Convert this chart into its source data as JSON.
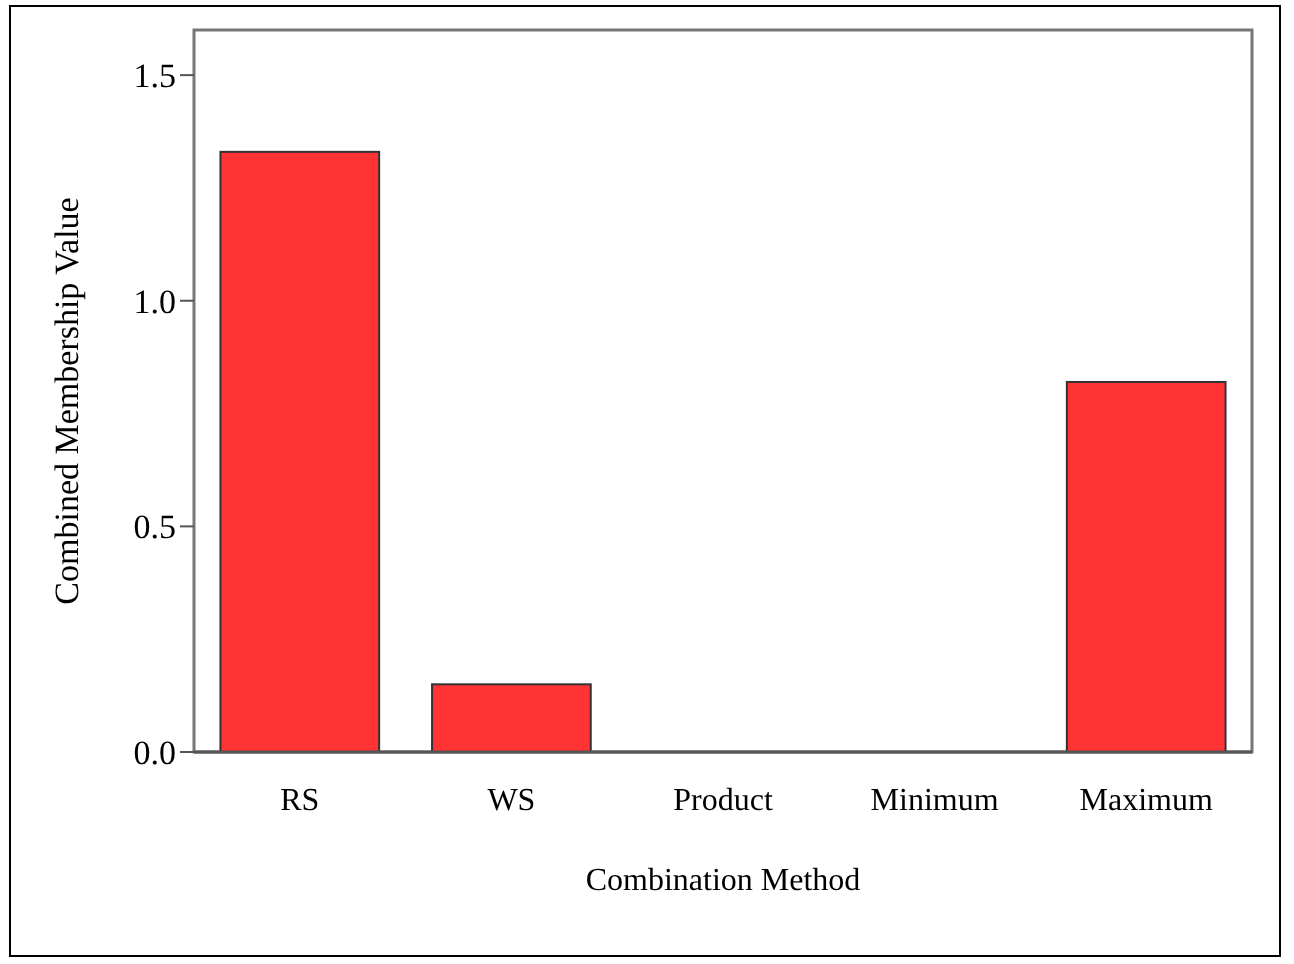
{
  "chart_data": {
    "type": "bar",
    "xlabel": "Combination Method",
    "ylabel": "Combined Membership Value",
    "categories": [
      "RS",
      "WS",
      "Product",
      "Minimum",
      "Maximum"
    ],
    "values": [
      1.33,
      0.15,
      0,
      0,
      0.82
    ],
    "color": "#ff3333",
    "ylim": [
      0,
      1.6
    ],
    "yticks": [
      {
        "value": 0,
        "label": "0.0"
      },
      {
        "value": 0.5,
        "label": "0.5"
      },
      {
        "value": 1,
        "label": "1.0"
      },
      {
        "value": 1.5,
        "label": "1.5"
      }
    ],
    "grid": false
  }
}
